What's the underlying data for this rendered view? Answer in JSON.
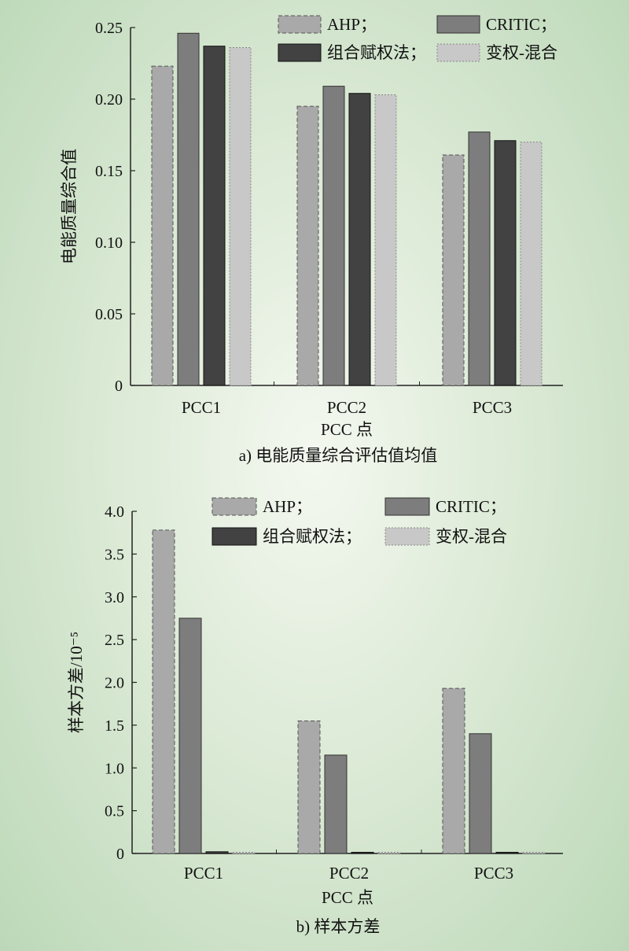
{
  "colors": {
    "ahp": "#a9a9a9",
    "critic": "#7d7d7d",
    "combined": "#424242",
    "hybrid": "#c8c8c8",
    "axis": "#222222"
  },
  "chart_data": [
    {
      "type": "bar",
      "caption": "a) 电能质量综合评估值均值",
      "xlabel": "PCC 点",
      "ylabel": "电能质量综合值",
      "categories": [
        "PCC1",
        "PCC2",
        "PCC3"
      ],
      "ylim": [
        0,
        0.25
      ],
      "yticks": [
        "0",
        "0.05",
        "0.10",
        "0.15",
        "0.20",
        "0.25"
      ],
      "ytick_values": [
        0,
        0.05,
        0.1,
        0.15,
        0.2,
        0.25
      ],
      "legend_position": "top-right",
      "series": [
        {
          "name": "AHP；",
          "values": [
            0.223,
            0.195,
            0.161
          ]
        },
        {
          "name": "CRITIC；",
          "values": [
            0.246,
            0.209,
            0.177
          ]
        },
        {
          "name": "组合赋权法；",
          "values": [
            0.237,
            0.204,
            0.171
          ]
        },
        {
          "name": "变权-混合",
          "values": [
            0.236,
            0.203,
            0.17
          ]
        }
      ]
    },
    {
      "type": "bar",
      "caption": "b) 样本方差",
      "xlabel": "PCC 点",
      "ylabel": "样本方差/10⁻⁵",
      "categories": [
        "PCC1",
        "PCC2",
        "PCC3"
      ],
      "ylim": [
        0,
        4.0
      ],
      "yticks": [
        "0",
        "0.5",
        "1.0",
        "1.5",
        "2.0",
        "2.5",
        "3.0",
        "3.5",
        "4.0"
      ],
      "ytick_values": [
        0,
        0.5,
        1.0,
        1.5,
        2.0,
        2.5,
        3.0,
        3.5,
        4.0
      ],
      "legend_position": "top-right",
      "series": [
        {
          "name": "AHP；",
          "values": [
            3.78,
            1.55,
            1.93
          ]
        },
        {
          "name": "CRITIC；",
          "values": [
            2.75,
            1.15,
            1.4
          ]
        },
        {
          "name": "组合赋权法；",
          "values": [
            0.02,
            0.01,
            0.01
          ]
        },
        {
          "name": "变权-混合",
          "values": [
            0.01,
            0.005,
            0.005
          ]
        }
      ]
    }
  ]
}
